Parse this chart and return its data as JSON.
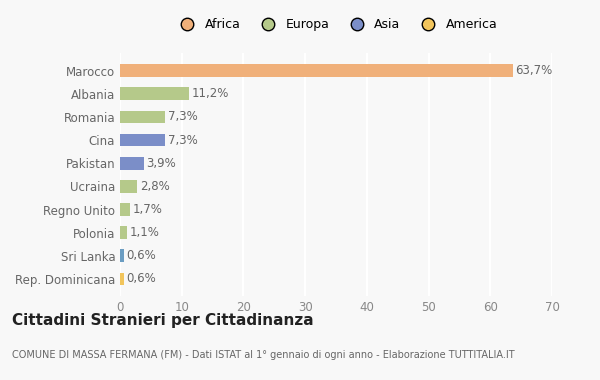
{
  "categories": [
    "Rep. Dominicana",
    "Sri Lanka",
    "Polonia",
    "Regno Unito",
    "Ucraina",
    "Pakistan",
    "Cina",
    "Romania",
    "Albania",
    "Marocco"
  ],
  "values": [
    0.6,
    0.6,
    1.1,
    1.7,
    2.8,
    3.9,
    7.3,
    7.3,
    11.2,
    63.7
  ],
  "labels": [
    "0,6%",
    "0,6%",
    "1,1%",
    "1,7%",
    "2,8%",
    "3,9%",
    "7,3%",
    "7,3%",
    "11,2%",
    "63,7%"
  ],
  "colors": [
    "#f2c55c",
    "#6b9dc2",
    "#b5c98a",
    "#b5c98a",
    "#b5c98a",
    "#7b8ec8",
    "#7b8ec8",
    "#b5c98a",
    "#b5c98a",
    "#f0b07a"
  ],
  "legend": {
    "Africa": "#f0b07a",
    "Europa": "#b5c98a",
    "Asia": "#7b8ec8",
    "America": "#f2c55c"
  },
  "title": "Cittadini Stranieri per Cittadinanza",
  "subtitle": "COMUNE DI MASSA FERMANA (FM) - Dati ISTAT al 1° gennaio di ogni anno - Elaborazione TUTTITALIA.IT",
  "xlim": [
    0,
    70
  ],
  "xticks": [
    0,
    10,
    20,
    30,
    40,
    50,
    60,
    70
  ],
  "background_color": "#f8f8f8",
  "plot_bg_color": "#f8f8f8",
  "bar_height": 0.55,
  "grid_color": "#ffffff",
  "label_fontsize": 8.5,
  "label_color": "#666666",
  "title_fontsize": 11,
  "title_color": "#222222",
  "subtitle_fontsize": 7,
  "subtitle_color": "#666666",
  "ytick_fontsize": 8.5,
  "ytick_color": "#666666",
  "xtick_fontsize": 8.5,
  "xtick_color": "#888888",
  "legend_fontsize": 9
}
